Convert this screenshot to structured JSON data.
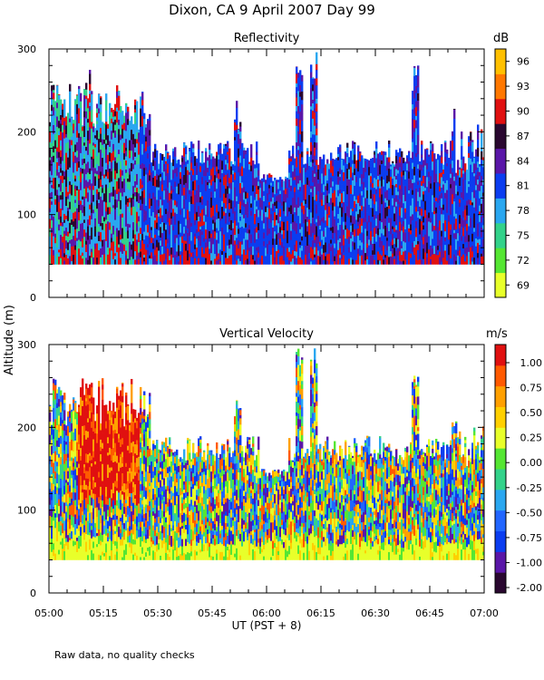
{
  "figure": {
    "title": "Dixon, CA   9 April 2007   Day   99",
    "shared_ylabel": "Altitude  (m)",
    "xlabel": "UT   (PST + 8)",
    "footnote": "Raw data, no quality checks"
  },
  "chart_data": [
    {
      "type": "heatmap",
      "title": "Reflectivity",
      "x_ticklabels": [],
      "y_ticklabels": [
        "0",
        "100",
        "200",
        "300"
      ],
      "ylim": [
        0,
        300
      ],
      "xlim": [
        "05:00",
        "07:00"
      ],
      "colorbar": {
        "unit": "dB",
        "ticks": [
          "96",
          "93",
          "90",
          "87",
          "84",
          "81",
          "78",
          "75",
          "72",
          "69"
        ],
        "range": [
          67.5,
          97.5
        ],
        "colors": [
          "#e8ff2a",
          "#55e633",
          "#33d28a",
          "#2aa7f0",
          "#0b3df0",
          "#5a16a8",
          "#2a0830",
          "#e01010",
          "#ff7800",
          "#ffc000"
        ]
      },
      "data_summary": {
        "data_floor_m": 40,
        "typical_top_m": 180,
        "plume_tops_m": [
          {
            "time": "05:02",
            "top": 260
          },
          {
            "time": "05:11",
            "top": 280
          },
          {
            "time": "05:52",
            "top": 240
          },
          {
            "time": "06:03",
            "top": 300
          },
          {
            "time": "06:09",
            "top": 300
          },
          {
            "time": "06:13",
            "top": 300
          },
          {
            "time": "06:41",
            "top": 280
          },
          {
            "time": "06:52",
            "top": 240
          }
        ],
        "gap": {
          "from": "05:58",
          "to": "06:06",
          "top": 140
        }
      }
    },
    {
      "type": "heatmap",
      "title": "Vertical Velocity",
      "x_ticklabels": [
        "05:00",
        "05:15",
        "05:30",
        "05:45",
        "06:00",
        "06:15",
        "06:30",
        "06:45",
        "07:00"
      ],
      "y_ticklabels": [
        "0",
        "100",
        "200",
        "300"
      ],
      "ylim": [
        0,
        300
      ],
      "xlim": [
        "05:00",
        "07:00"
      ],
      "colorbar": {
        "unit": "m/s",
        "ticks": [
          "1.00",
          "0.75",
          "0.50",
          "0.25",
          "0.00",
          "-0.25",
          "-0.50",
          "-0.75",
          "-1.00",
          "-2.00"
        ],
        "colors": [
          "#2a0830",
          "#5a16a8",
          "#0b3df0",
          "#2266ff",
          "#2aa7f0",
          "#33d28a",
          "#55e633",
          "#e8ff2a",
          "#ffd000",
          "#ffa000",
          "#ff5a00",
          "#e01010"
        ]
      },
      "data_summary": {
        "data_floor_m": 40,
        "typical_top_m": 180,
        "updraft": {
          "from": "05:08",
          "to": "05:25",
          "velocity": 1.0
        }
      }
    }
  ]
}
